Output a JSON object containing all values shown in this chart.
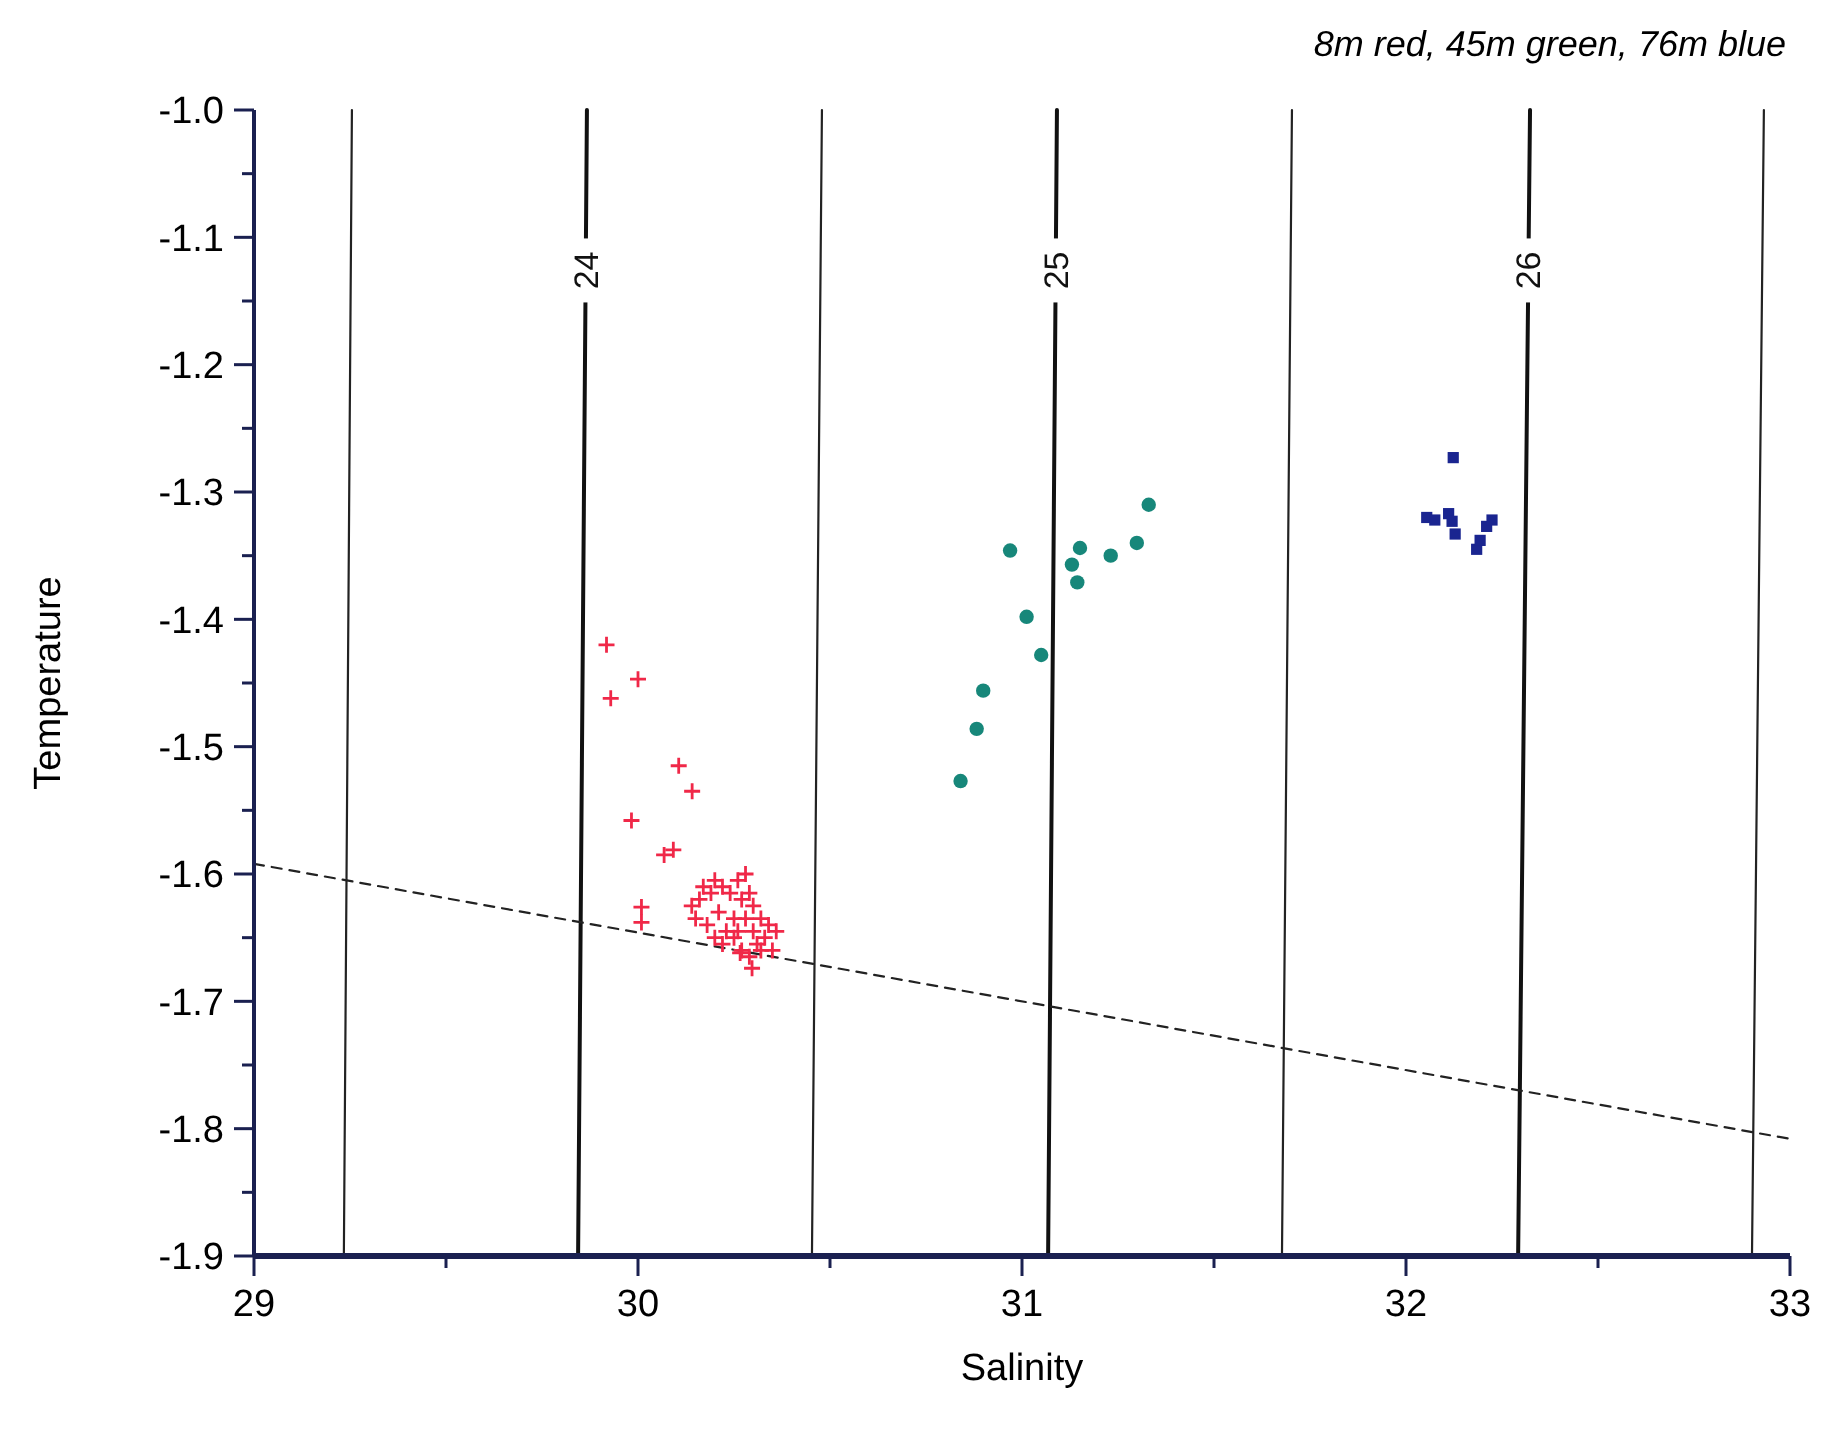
{
  "chart_data": {
    "type": "scatter",
    "xlabel": "Salinity",
    "ylabel": "Temperature",
    "annotations": [
      "8m red, 45m green, 76m blue"
    ],
    "xlim": [
      29,
      33
    ],
    "ylim": [
      -1.9,
      -1.0
    ],
    "xticks": [
      29,
      {
        "value": 29.5,
        "label": null
      },
      30,
      {
        "value": 30.5,
        "label": null
      },
      31,
      {
        "value": 31.5,
        "label": null
      },
      32,
      {
        "value": 32.5,
        "label": null
      },
      33
    ],
    "yticks": [
      {
        "value": -1.9,
        "label": "-1.9"
      },
      {
        "value": -1.85,
        "label": null
      },
      {
        "value": -1.8,
        "label": "-1.8"
      },
      {
        "value": -1.75,
        "label": null
      },
      {
        "value": -1.7,
        "label": "-1.7"
      },
      {
        "value": -1.65,
        "label": null
      },
      {
        "value": -1.6,
        "label": "-1.6"
      },
      {
        "value": -1.55,
        "label": null
      },
      {
        "value": -1.5,
        "label": "-1.5"
      },
      {
        "value": -1.45,
        "label": null
      },
      {
        "value": -1.4,
        "label": "-1.4"
      },
      {
        "value": -1.35,
        "label": null
      },
      {
        "value": -1.3,
        "label": "-1.3"
      },
      {
        "value": -1.25,
        "label": null
      },
      {
        "value": -1.2,
        "label": "-1.2"
      },
      {
        "value": -1.15,
        "label": null
      },
      {
        "value": -1.1,
        "label": "-1.1"
      },
      {
        "value": -1.05,
        "label": null
      },
      {
        "value": -1.0,
        "label": "-1.0"
      }
    ],
    "grid": false,
    "series": [
      {
        "type": "line",
        "color": "#222222",
        "x": [
          29.255,
          29.234
        ],
        "values": [
          -1.0,
          -1.9
        ],
        "line_style": "solid",
        "marker": "none"
      },
      {
        "type": "line",
        "name": "24",
        "color": "#111111",
        "x": [
          29.867,
          29.844
        ],
        "values": [
          -1.0,
          -1.9
        ],
        "line_style": "solid",
        "marker": "none"
      },
      {
        "type": "line",
        "color": "#222222",
        "x": [
          30.479,
          30.453
        ],
        "values": [
          -1.0,
          -1.9
        ],
        "line_style": "solid",
        "marker": "none"
      },
      {
        "type": "line",
        "name": "25",
        "color": "#111111",
        "x": [
          31.091,
          31.068
        ],
        "values": [
          -1.0,
          -1.9
        ],
        "line_style": "solid",
        "marker": "none"
      },
      {
        "type": "line",
        "color": "#222222",
        "x": [
          31.703,
          31.677
        ],
        "values": [
          -1.0,
          -1.9
        ],
        "line_style": "solid",
        "marker": "none"
      },
      {
        "type": "line",
        "name": "26",
        "color": "#111111",
        "x": [
          32.323,
          32.292
        ],
        "values": [
          -1.0,
          -1.9
        ],
        "line_style": "solid",
        "marker": "none"
      },
      {
        "type": "line",
        "color": "#222222",
        "x": [
          32.932,
          32.901
        ],
        "values": [
          -1.0,
          -1.9
        ],
        "line_style": "solid",
        "marker": "none"
      },
      {
        "type": "line",
        "color": "#222222",
        "x": [
          29,
          33
        ],
        "values": [
          -1.592,
          -1.808
        ],
        "line_style": "dashed",
        "marker": "none"
      },
      {
        "color": "#f02848",
        "marker": "cross",
        "x": [
          29.918,
          30.0,
          29.929,
          30.106,
          30.141,
          29.983,
          30.068,
          30.092,
          30.009,
          30.009,
          30.266,
          30.297,
          30.14,
          30.15,
          30.16,
          30.17,
          30.18,
          30.19,
          30.2,
          30.21,
          30.22,
          30.23,
          30.24,
          30.25,
          30.2,
          30.22,
          30.26,
          30.27,
          30.28,
          30.28,
          30.29,
          30.3,
          30.3,
          30.31,
          30.32,
          30.33,
          30.34,
          30.35,
          30.36,
          30.27,
          30.29,
          30.32,
          30.25,
          30.26
        ],
        "values": [
          -1.42,
          -1.447,
          -1.462,
          -1.515,
          -1.535,
          -1.558,
          -1.585,
          -1.581,
          -1.626,
          -1.638,
          -1.662,
          -1.674,
          -1.625,
          -1.635,
          -1.62,
          -1.61,
          -1.64,
          -1.615,
          -1.605,
          -1.63,
          -1.61,
          -1.645,
          -1.615,
          -1.65,
          -1.65,
          -1.655,
          -1.605,
          -1.62,
          -1.6,
          -1.635,
          -1.615,
          -1.645,
          -1.625,
          -1.655,
          -1.635,
          -1.65,
          -1.64,
          -1.66,
          -1.645,
          -1.66,
          -1.665,
          -1.66,
          -1.635,
          -1.645
        ]
      },
      {
        "color": "#17877a",
        "marker": "circle",
        "x": [
          31.33,
          30.969,
          31.151,
          31.231,
          31.299,
          31.13,
          31.144,
          31.012,
          31.05,
          30.899,
          30.882,
          30.84
        ],
        "values": [
          -1.31,
          -1.346,
          -1.344,
          -1.35,
          -1.34,
          -1.357,
          -1.371,
          -1.398,
          -1.428,
          -1.456,
          -1.486,
          -1.527
        ]
      },
      {
        "color": "#1a2590",
        "marker": "square",
        "x": [
          32.123,
          32.054,
          32.075,
          32.111,
          32.12,
          32.128,
          32.184,
          32.193,
          32.21,
          32.224
        ],
        "values": [
          -1.273,
          -1.32,
          -1.322,
          -1.317,
          -1.323,
          -1.333,
          -1.345,
          -1.338,
          -1.327,
          -1.322
        ]
      }
    ]
  }
}
